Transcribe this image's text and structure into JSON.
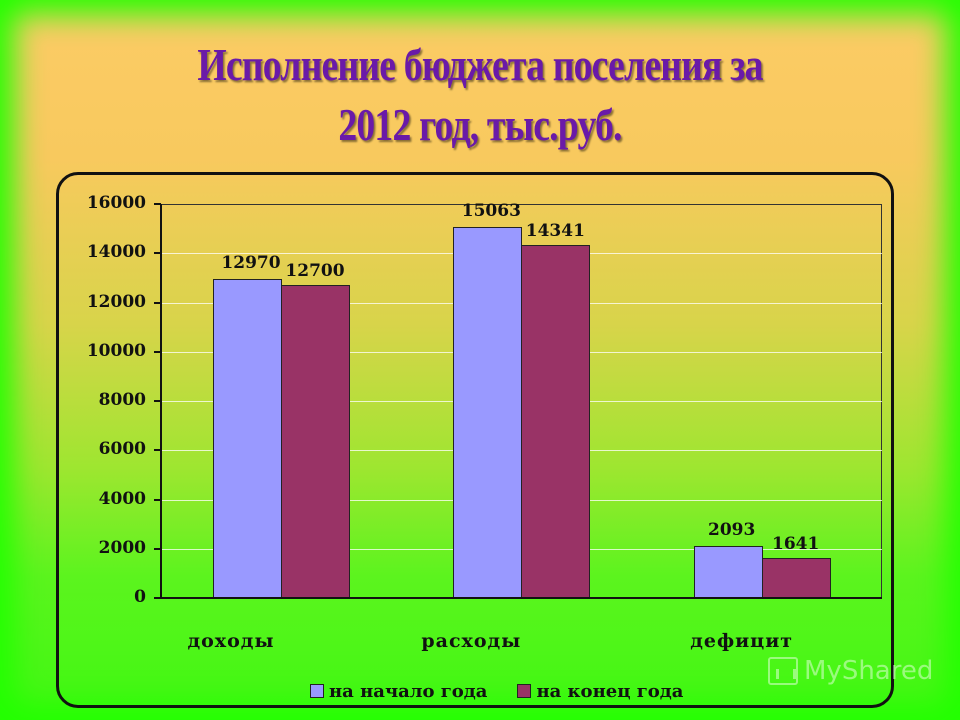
{
  "title": {
    "line1": "Исполнение бюджета поселения за",
    "line2": "2012 год, тыс.руб."
  },
  "colors": {
    "series_start": "#9999ff",
    "series_end": "#993366",
    "title": "#6a1aa8"
  },
  "watermark": "MyShared",
  "chart_data": {
    "type": "bar",
    "title": "Исполнение бюджета поселения за 2012 год, тыс.руб.",
    "xlabel": "",
    "ylabel": "",
    "ylim": [
      0,
      16000
    ],
    "yticks": [
      "0",
      "2000",
      "4000",
      "6000",
      "8000",
      "10000",
      "12000",
      "14000",
      "16000"
    ],
    "grid": true,
    "legend_position": "bottom",
    "categories": [
      "доходы",
      "расходы",
      "дефицит"
    ],
    "series": [
      {
        "name": "на начало года",
        "color": "#9999ff",
        "values": [
          12970,
          15063,
          2093
        ],
        "labels": [
          "12970",
          "15063",
          "2093"
        ]
      },
      {
        "name": "на конец года",
        "color": "#993366",
        "values": [
          12700,
          14341,
          1641
        ],
        "labels": [
          "12700",
          "14341",
          "1641"
        ]
      }
    ]
  }
}
